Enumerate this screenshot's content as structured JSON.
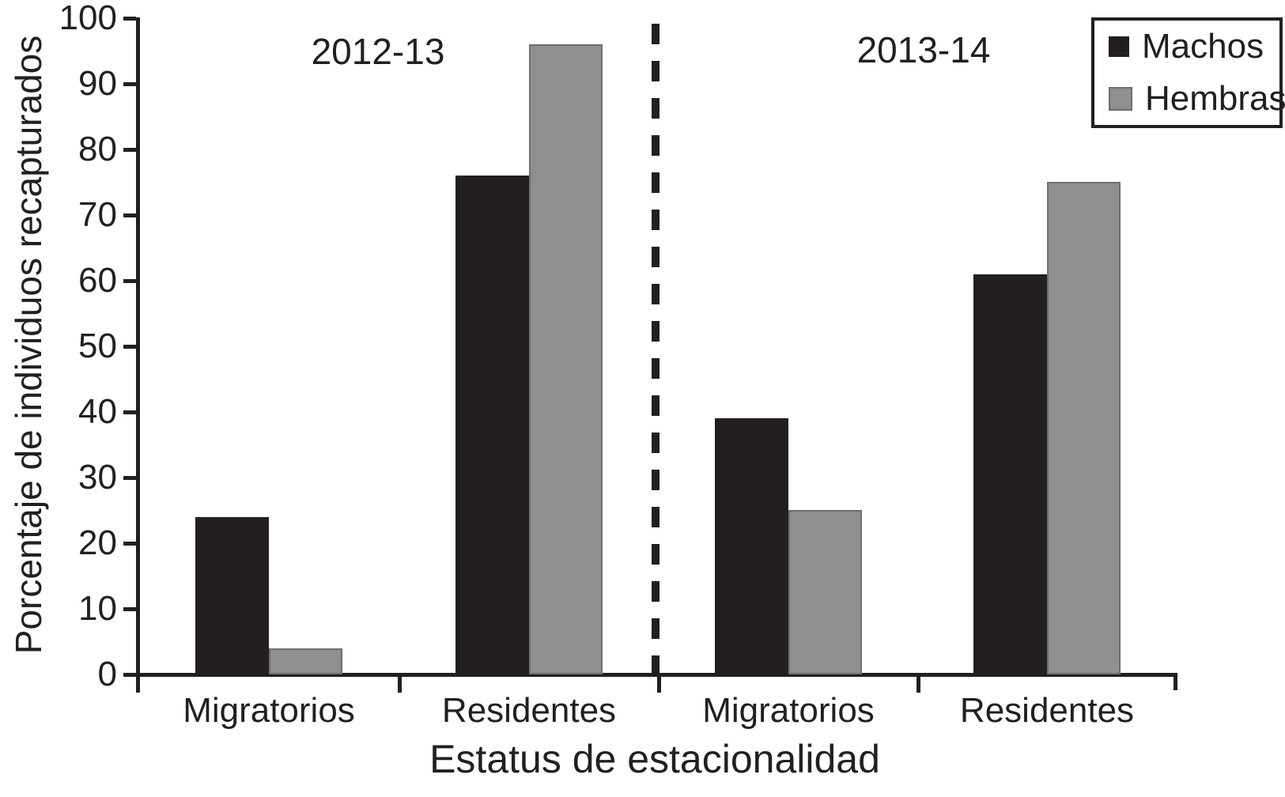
{
  "figure": {
    "y_axis_label": "Porcentaje de individuos recapturados",
    "x_axis_label": "Estatus de estacionalidad"
  },
  "chart_data": {
    "type": "bar",
    "title": "",
    "xlabel": "Estatus de estacionalidad",
    "ylabel": "Porcentaje de individuos recapturados",
    "ylim": [
      0,
      100
    ],
    "ytick_interval": 10,
    "grid": false,
    "legend_position": "top-right",
    "panels": [
      {
        "label": "2012-13",
        "categories": [
          "Migratorios",
          "Residentes"
        ]
      },
      {
        "label": "2013-14",
        "categories": [
          "Migratorios",
          "Residentes"
        ]
      }
    ],
    "categories": [
      "Migratorios",
      "Residentes",
      "Migratorios",
      "Residentes"
    ],
    "series": [
      {
        "name": "Machos",
        "color": "#231f20",
        "values": [
          24,
          76,
          39,
          61
        ]
      },
      {
        "name": "Hembras",
        "color": "#8f8f92",
        "values": [
          4,
          96,
          25,
          75
        ]
      }
    ],
    "separator_note": "dashed vertical line between 2012-13 and 2013-14 panels",
    "colors": {
      "ink": "#231f20",
      "bar_gray": "#8f8f92",
      "bar_gray_border": "#6f6f73"
    }
  }
}
